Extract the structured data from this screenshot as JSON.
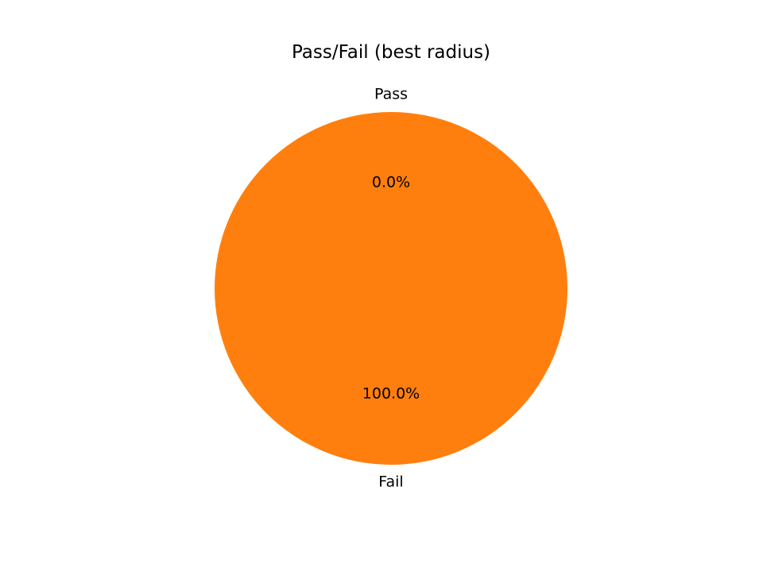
{
  "chart_data": {
    "type": "pie",
    "title": "Pass/Fail (best radius)",
    "slices": [
      {
        "label": "Pass",
        "value": 0.0,
        "percent_label": "0.0%",
        "color": "#1f77b4"
      },
      {
        "label": "Fail",
        "value": 100.0,
        "percent_label": "100.0%",
        "color": "#ff7f0e"
      }
    ],
    "start_angle": 90,
    "direction": "counterclockwise"
  }
}
